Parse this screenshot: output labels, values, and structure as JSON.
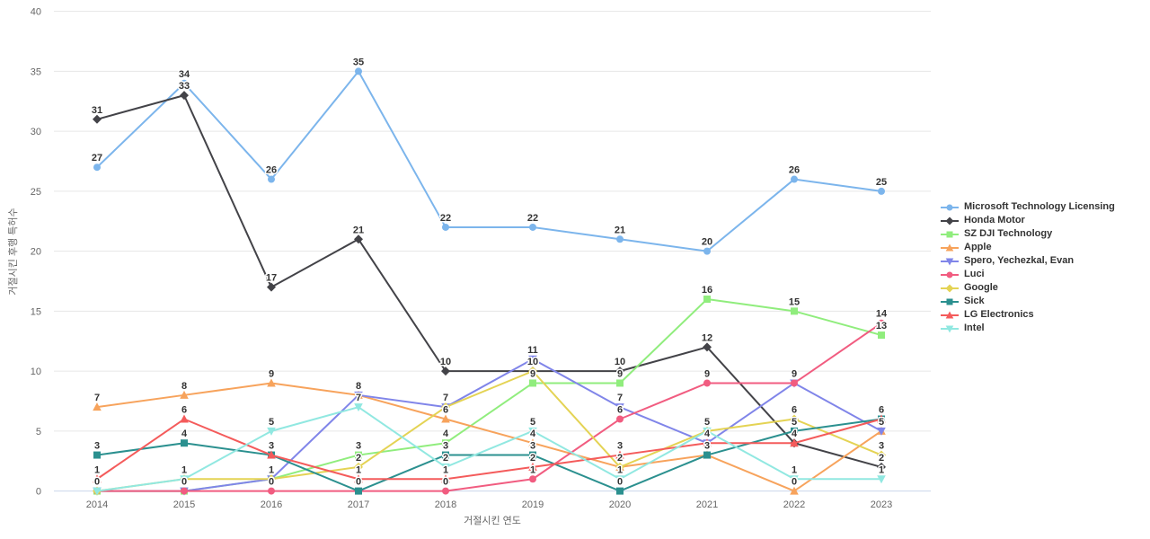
{
  "chart_data": {
    "type": "line",
    "title": "",
    "xlabel": "거절시킨 연도",
    "ylabel": "거절시킨 후행 특허수",
    "categories": [
      "2014",
      "2015",
      "2016",
      "2017",
      "2018",
      "2019",
      "2020",
      "2021",
      "2022",
      "2023"
    ],
    "ylim": [
      0,
      40
    ],
    "ytick_interval": 5,
    "grid": "horizontal-only",
    "legend_position": "right",
    "data_labels": "on, integer values, duplicates at same point shown once",
    "series": [
      {
        "name": "Microsoft Technology Licensing",
        "color": "#7cb5ec",
        "marker": "circle",
        "values": [
          27,
          34,
          26,
          35,
          22,
          22,
          21,
          20,
          26,
          25
        ]
      },
      {
        "name": "Honda Motor",
        "color": "#434348",
        "marker": "diamond",
        "values": [
          31,
          33,
          17,
          21,
          10,
          10,
          10,
          12,
          4,
          2
        ]
      },
      {
        "name": "SZ DJI Technology",
        "color": "#90ed7d",
        "marker": "square",
        "values": [
          0,
          0,
          1,
          3,
          4,
          9,
          9,
          16,
          15,
          13
        ]
      },
      {
        "name": "Apple",
        "color": "#f7a35c",
        "marker": "triangle",
        "values": [
          7,
          8,
          9,
          8,
          6,
          4,
          2,
          3,
          0,
          5
        ]
      },
      {
        "name": "Spero, Yechezkal, Evan",
        "color": "#8085e9",
        "marker": "triangle-down",
        "values": [
          0,
          0,
          1,
          8,
          7,
          11,
          7,
          4,
          9,
          5
        ]
      },
      {
        "name": "Luci",
        "color": "#f15c80",
        "marker": "circle",
        "values": [
          0,
          0,
          0,
          0,
          0,
          1,
          6,
          9,
          9,
          14
        ]
      },
      {
        "name": "Google",
        "color": "#e4d354",
        "marker": "diamond",
        "values": [
          0,
          1,
          1,
          2,
          7,
          10,
          2,
          5,
          6,
          3
        ]
      },
      {
        "name": "Sick",
        "color": "#2b908f",
        "marker": "square",
        "values": [
          3,
          4,
          3,
          0,
          3,
          3,
          0,
          3,
          5,
          6
        ]
      },
      {
        "name": "LG Electronics",
        "color": "#f45b5b",
        "marker": "triangle",
        "values": [
          1,
          6,
          3,
          1,
          1,
          2,
          3,
          4,
          4,
          6
        ]
      },
      {
        "name": "Intel",
        "color": "#91e8e1",
        "marker": "triangle-down",
        "values": [
          0,
          1,
          5,
          7,
          2,
          5,
          1,
          5,
          1,
          1
        ]
      }
    ],
    "style": {
      "grid_color": "#e6e6e6",
      "axis_line_color": "#ccd6eb",
      "tick_text_color": "#666666",
      "data_label_color": "#333333",
      "legend_text_color": "#333333",
      "background_color": "#ffffff"
    }
  }
}
